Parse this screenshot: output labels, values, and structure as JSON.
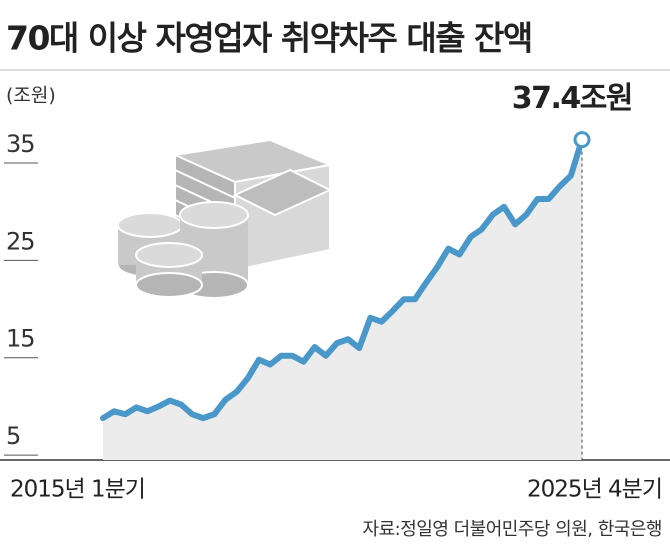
{
  "chart_data": {
    "type": "line",
    "title": "70대 이상 자영업자 취약차주 대출 잔액",
    "y_label": "(조원)",
    "source": "자료:정일영 더불어민주당 의원, 한국은행",
    "categories": [
      "2015년 1분기",
      null,
      null,
      null,
      null,
      null,
      null,
      null,
      null,
      null,
      null,
      null,
      null,
      null,
      null,
      null,
      null,
      null,
      null,
      null,
      null,
      null,
      null,
      null,
      null,
      null,
      null,
      null,
      null,
      null,
      null,
      null,
      null,
      null,
      null,
      null,
      null,
      null,
      null,
      null,
      null,
      null,
      null,
      "2025년 4분기"
    ],
    "values": [
      8.8,
      9.5,
      9.2,
      9.9,
      9.5,
      10.0,
      10.6,
      10.2,
      9.2,
      8.8,
      9.2,
      10.7,
      11.5,
      12.9,
      14.8,
      14.3,
      15.2,
      15.2,
      14.6,
      16.1,
      15.2,
      16.5,
      16.9,
      16.0,
      19.1,
      18.7,
      19.8,
      21.0,
      21.0,
      22.7,
      24.3,
      26.2,
      25.6,
      27.4,
      28.2,
      29.7,
      30.5,
      28.7,
      29.7,
      31.3,
      31.3,
      32.6,
      33.7,
      37.4
    ],
    "value_labels": [
      null,
      null,
      null,
      null,
      null,
      null,
      null,
      null,
      null,
      null,
      null,
      null,
      null,
      null,
      null,
      null,
      null,
      null,
      null,
      null,
      null,
      null,
      null,
      null,
      null,
      null,
      null,
      null,
      null,
      null,
      null,
      null,
      null,
      null,
      null,
      null,
      null,
      null,
      null,
      null,
      null,
      null,
      null,
      "37.4조원"
    ],
    "color": "#4a97c9",
    "area_color": "#ececec",
    "ylim": [
      4.5,
      39
    ],
    "yticks": [
      5,
      15,
      25,
      35
    ],
    "grid": false
  }
}
